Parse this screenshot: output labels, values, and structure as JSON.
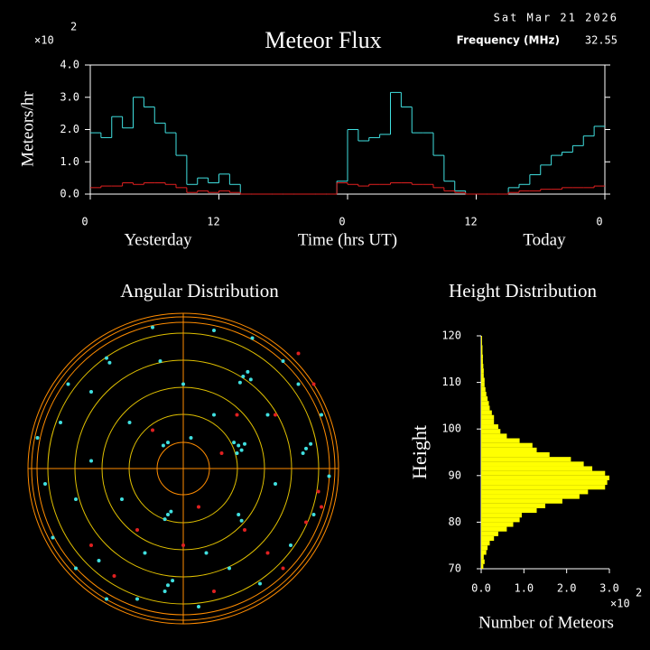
{
  "header": {
    "date": "Sat Mar 21 2026",
    "frequency_label": "Frequency (MHz)",
    "frequency": "32.55"
  },
  "chart_data": [
    {
      "type": "step",
      "title": "Meteor Flux",
      "multiplier": "×10",
      "multiplier_exp": "2",
      "y_label": "Meteors/hr",
      "x_label": "Time (hrs UT)",
      "x_left_label": "Yesterday",
      "x_right_label": "Today",
      "xlim": [
        0,
        48
      ],
      "xticks": [
        0,
        12,
        {
          "value": 24,
          "label": "0"
        },
        {
          "value": 36,
          "label": "12"
        },
        {
          "value": 48,
          "label": "0"
        }
      ],
      "ylim": [
        0,
        4
      ],
      "yticks": [
        {
          "value": 0,
          "label": "0.0"
        },
        {
          "value": 1,
          "label": "1.0"
        },
        {
          "value": 2,
          "label": "2.0"
        },
        {
          "value": 3,
          "label": "3.0"
        },
        {
          "value": 4,
          "label": "4.0"
        }
      ],
      "x": [
        0,
        1,
        2,
        3,
        4,
        5,
        6,
        7,
        8,
        9,
        10,
        11,
        12,
        13,
        14,
        15,
        16,
        17,
        18,
        19,
        20,
        21,
        22,
        23,
        24,
        25,
        26,
        27,
        28,
        29,
        30,
        31,
        32,
        33,
        34,
        35,
        36,
        37,
        38,
        39,
        40,
        41,
        42,
        43,
        44,
        45,
        46,
        47
      ],
      "series": [
        {
          "color": "#40e0e0",
          "values": [
            1.9,
            1.75,
            2.4,
            2.05,
            3.0,
            2.7,
            2.2,
            1.9,
            1.2,
            0.3,
            0.5,
            0.35,
            0.62,
            0.3,
            0,
            0,
            0,
            0,
            0,
            0,
            0,
            0,
            0,
            0.4,
            2.0,
            1.65,
            1.75,
            1.85,
            3.15,
            2.7,
            1.9,
            1.9,
            1.2,
            0.4,
            0.1,
            0,
            0,
            0,
            0,
            0.2,
            0.3,
            0.6,
            0.9,
            1.2,
            1.3,
            1.5,
            1.8,
            2.1
          ]
        },
        {
          "color": "#e02020",
          "values": [
            0.2,
            0.25,
            0.25,
            0.35,
            0.3,
            0.35,
            0.35,
            0.3,
            0.2,
            0.05,
            0.1,
            0.05,
            0.1,
            0.05,
            0,
            0,
            0,
            0,
            0,
            0,
            0,
            0,
            0,
            0.35,
            0.3,
            0.25,
            0.3,
            0.3,
            0.35,
            0.35,
            0.3,
            0.3,
            0.2,
            0.1,
            0.05,
            0,
            0,
            0,
            0,
            0.05,
            0.1,
            0.1,
            0.15,
            0.15,
            0.2,
            0.2,
            0.2,
            0.25
          ]
        }
      ]
    },
    {
      "type": "polar-scatter",
      "title": "Angular Distribution",
      "series": [
        {
          "color": "#40e0e0",
          "x": [
            0.36,
            0.38,
            0.33,
            0.35,
            0.4,
            0.39,
            0.42,
            0.37,
            0.44,
            0.8,
            0.78,
            0.83,
            -0.1,
            -0.12,
            -0.08,
            -0.1,
            -0.13,
            -0.1,
            -0.12,
            -0.07,
            0.36,
            0.38,
            -0.48,
            -0.5,
            -0.8,
            -0.7,
            -0.6,
            -0.9,
            -0.55,
            -0.3,
            0.1,
            0.5,
            0.7,
            0.85,
            0.9,
            0.65,
            0.2,
            -0.2,
            -0.75,
            -0.85,
            0.0,
            0.2,
            -0.35,
            -0.4,
            0.15,
            0.55,
            -0.6,
            0.6,
            -0.25,
            0.45,
            -0.5,
            0.75,
            -0.95,
            0.95,
            -0.15,
            0.3,
            -0.7,
            0.05
          ],
          "y": [
            0.15,
            0.12,
            0.17,
            0.1,
            0.16,
            0.6,
            0.63,
            0.56,
            0.58,
            0.13,
            0.1,
            0.16,
            -0.3,
            -0.33,
            -0.28,
            0.17,
            0.15,
            -0.76,
            -0.8,
            -0.73,
            -0.3,
            -0.34,
            0.69,
            0.72,
            0.3,
            -0.2,
            0.5,
            -0.1,
            -0.6,
            -0.85,
            -0.9,
            -0.75,
            -0.5,
            -0.3,
            0.35,
            0.7,
            0.9,
            0.92,
            0.55,
            -0.45,
            0.55,
            0.35,
            0.3,
            -0.2,
            -0.55,
            0.35,
            0.05,
            -0.1,
            -0.55,
            0.85,
            -0.85,
            0.55,
            0.2,
            -0.05,
            0.7,
            -0.65,
            -0.65,
            0.2
          ]
        },
        {
          "color": "#e02020",
          "x": [
            0.85,
            0.8,
            0.9,
            0.35,
            0.25,
            0.0,
            -0.3,
            -0.6,
            0.55,
            0.2,
            0.75,
            -0.2,
            0.6,
            0.1,
            0.88,
            0.4,
            -0.45,
            0.65
          ],
          "y": [
            0.55,
            -0.35,
            -0.25,
            0.35,
            0.1,
            -0.5,
            -0.4,
            -0.5,
            -0.55,
            -0.8,
            0.75,
            0.25,
            0.35,
            -0.25,
            -0.15,
            -0.4,
            -0.7,
            -0.65
          ]
        }
      ]
    },
    {
      "type": "horizontal-histogram",
      "title": "Height Distribution",
      "y_label": "Height",
      "x_label": "Number of Meteors",
      "multiplier": "×10",
      "multiplier_exp": "2",
      "color": "#ffff00",
      "xlim": [
        0,
        3
      ],
      "xticks": [
        {
          "value": 0,
          "label": "0.0"
        },
        {
          "value": 1,
          "label": "1.0"
        },
        {
          "value": 2,
          "label": "2.0"
        },
        {
          "value": 3,
          "label": "3.0"
        }
      ],
      "ylim": [
        70,
        120
      ],
      "yticks": [
        70,
        80,
        90,
        100,
        110,
        120
      ],
      "bins": [
        70,
        71,
        72,
        73,
        74,
        75,
        76,
        77,
        78,
        79,
        80,
        81,
        82,
        83,
        84,
        85,
        86,
        87,
        88,
        89,
        90,
        91,
        92,
        93,
        94,
        95,
        96,
        97,
        98,
        99,
        100,
        101,
        102,
        103,
        104,
        105,
        106,
        107,
        108,
        109,
        110,
        111,
        112,
        113,
        114,
        115,
        116,
        117,
        118,
        119,
        120
      ],
      "values": [
        0.05,
        0.08,
        0.06,
        0.12,
        0.15,
        0.2,
        0.3,
        0.4,
        0.6,
        0.75,
        0.9,
        0.95,
        1.3,
        1.5,
        1.9,
        2.3,
        2.5,
        2.9,
        2.95,
        3.0,
        2.9,
        2.6,
        2.4,
        2.1,
        1.6,
        1.3,
        1.2,
        0.9,
        0.6,
        0.45,
        0.4,
        0.3,
        0.3,
        0.25,
        0.2,
        0.18,
        0.15,
        0.12,
        0.1,
        0.08,
        0.08,
        0.06,
        0.06,
        0.05,
        0.04,
        0.04,
        0.03,
        0.03,
        0.02,
        0.02
      ]
    }
  ]
}
